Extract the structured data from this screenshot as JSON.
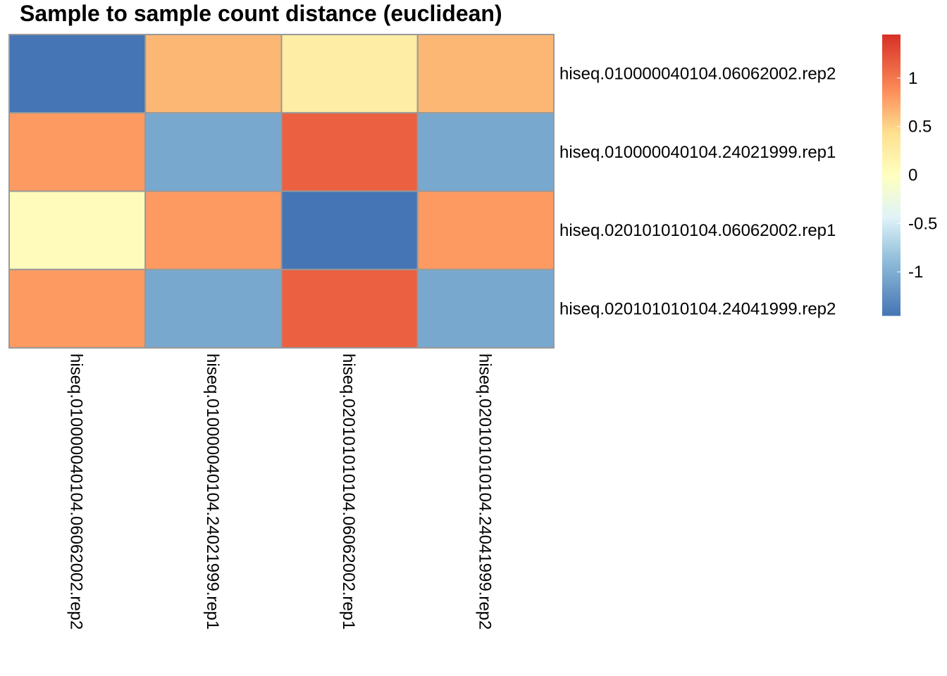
{
  "chart_data": {
    "type": "heatmap",
    "title": "Sample to sample count distance (euclidean)",
    "rows": [
      "hiseq.010000040104.06062002.rep2",
      "hiseq.010000040104.24021999.rep1",
      "hiseq.020101010104.06062002.rep1",
      "hiseq.020101010104.24041999.rep2"
    ],
    "columns": [
      "hiseq.010000040104.06062002.rep2",
      "hiseq.010000040104.24021999.rep1",
      "hiseq.020101010104.06062002.rep1",
      "hiseq.020101010104.24041999.rep2"
    ],
    "values": [
      [
        -1.45,
        0.65,
        0.25,
        0.65
      ],
      [
        0.8,
        -1.05,
        1.15,
        -1.05
      ],
      [
        0.05,
        0.8,
        -1.45,
        0.8
      ],
      [
        0.8,
        -1.05,
        1.15,
        -1.05
      ]
    ],
    "color_range": [
      -1.45,
      1.45
    ],
    "legend": {
      "position": "right",
      "ticks": [
        1,
        0.5,
        0,
        -0.5,
        -1
      ],
      "tick_labels": [
        "1",
        "0.5",
        "0",
        "-0.5",
        "-1"
      ]
    },
    "colors": {
      "low": "#4575b4",
      "mid": "#ffffbf",
      "high": "#d73027",
      "cell_border": "#999999"
    }
  }
}
